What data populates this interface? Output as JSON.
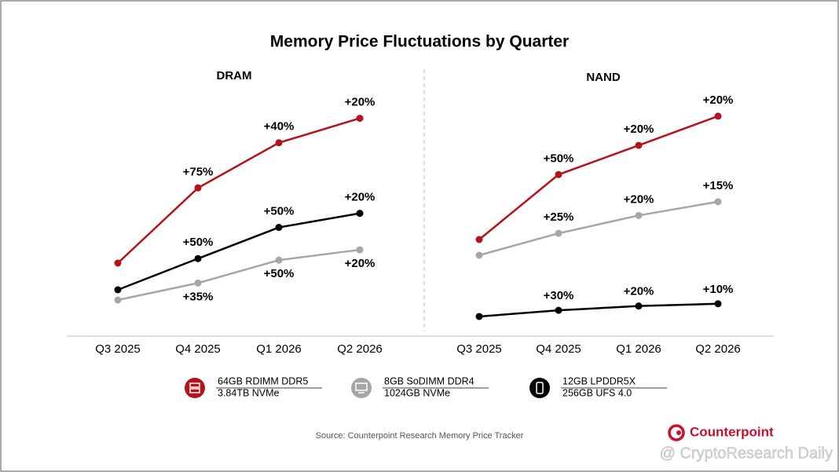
{
  "title": "Memory Price Fluctuations by Quarter",
  "chart_data": [
    {
      "type": "line",
      "title": "DRAM",
      "categories": [
        "Q3 2025",
        "Q4 2025",
        "Q1 2026",
        "Q2 2026"
      ],
      "series": [
        {
          "name": "64GB RDIMM DDR5",
          "color": "#b5121b",
          "values": [
            0,
            75,
            40,
            20
          ],
          "value_labels": [
            null,
            "+75%",
            "+40%",
            "+20%"
          ]
        },
        {
          "name": "8GB SoDIMM DDR4",
          "color": "#a6a6a6",
          "values": [
            0,
            35,
            50,
            20
          ],
          "value_labels": [
            null,
            "+35%",
            "+50%",
            "+20%"
          ]
        },
        {
          "name": "12GB LPDDR5X",
          "color": "#000000",
          "values": [
            0,
            50,
            50,
            20
          ],
          "value_labels": [
            null,
            "+50%",
            "+50%",
            "+20%"
          ]
        }
      ]
    },
    {
      "type": "line",
      "title": "NAND",
      "categories": [
        "Q3 2025",
        "Q4 2025",
        "Q1 2026",
        "Q2 2026"
      ],
      "series": [
        {
          "name": "3.84TB NVMe",
          "color": "#b5121b",
          "values": [
            0,
            50,
            20,
            20
          ],
          "value_labels": [
            null,
            "+50%",
            "+20%",
            "+20%"
          ]
        },
        {
          "name": "1024GB NVMe",
          "color": "#a6a6a6",
          "values": [
            0,
            25,
            20,
            15
          ],
          "value_labels": [
            null,
            "+25%",
            "+20%",
            "+15%"
          ]
        },
        {
          "name": "256GB UFS 4.0",
          "color": "#000000",
          "values": [
            0,
            30,
            20,
            10
          ],
          "value_labels": [
            null,
            "+30%",
            "+20%",
            "+10%"
          ]
        }
      ]
    }
  ],
  "source": "Source: Counterpoint Research Memory Price Tracker",
  "brand": "Counterpoint",
  "watermark": "@ CryptoResearch Daily"
}
